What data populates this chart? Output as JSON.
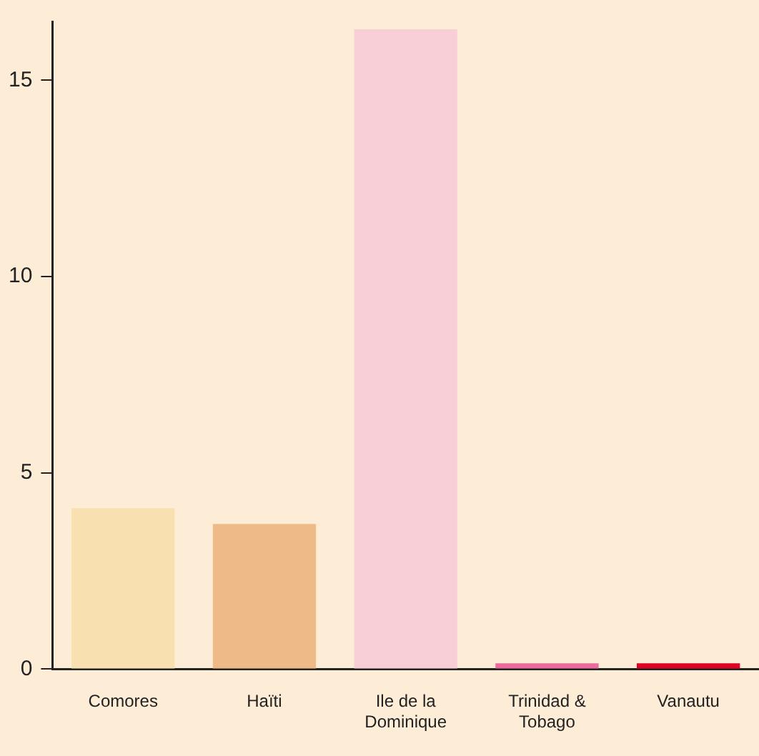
{
  "chart_data": {
    "type": "bar",
    "categories": [
      "Comores",
      "Haïti",
      "Ile de la Dominique",
      "Trinidad & Tobago",
      "Vanautu"
    ],
    "values": [
      4.1,
      3.7,
      16.3,
      0.15,
      0.15
    ],
    "colors": [
      "#f9e0b0",
      "#eebb88",
      "#f8cfd6",
      "#ec6a9c",
      "#e00024"
    ],
    "ylim": [
      0,
      16.5
    ],
    "yticks": [
      0,
      5,
      10,
      15
    ],
    "grid": false,
    "legend": false
  }
}
